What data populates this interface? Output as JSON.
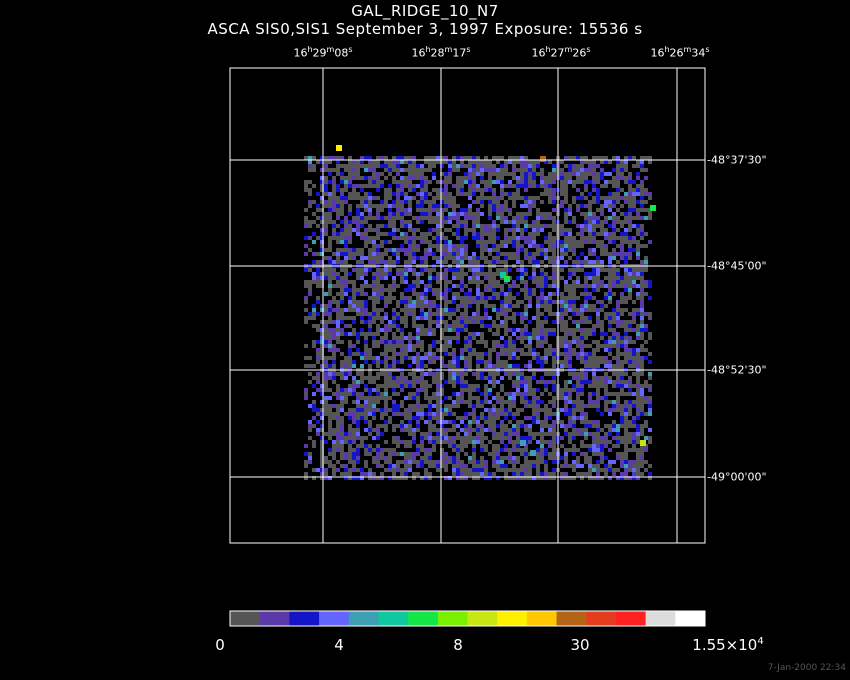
{
  "title": "GAL_RIDGE_10_N7",
  "subtitle": "ASCA SIS0,SIS1 September 3, 1997 Exposure: 15536 s",
  "ra_labels": [
    {
      "h": "16",
      "m": "29",
      "s": "08"
    },
    {
      "h": "16",
      "m": "28",
      "s": "17"
    },
    {
      "h": "16",
      "m": "27",
      "s": "26"
    },
    {
      "h": "16",
      "m": "26",
      "s": "34"
    }
  ],
  "dec_labels": [
    "-48°37'30\"",
    "-48°45'00\"",
    "-48°52'30\"",
    "-49°00'00\""
  ],
  "colorbar": {
    "colors": [
      "#555555",
      "#5a3aa8",
      "#1414c8",
      "#6464ff",
      "#3c9fb4",
      "#10c8a0",
      "#14e648",
      "#78f000",
      "#c8e614",
      "#fff000",
      "#ffc800",
      "#b46414",
      "#e63c1e",
      "#ff2020",
      "#dcdcdc",
      "#ffffff"
    ],
    "labels": [
      "0",
      "4",
      "8",
      "30"
    ],
    "max_label_base": "1.55×10",
    "max_label_exp": "4"
  },
  "timestamp": "7-Jan-2000 22:34"
}
